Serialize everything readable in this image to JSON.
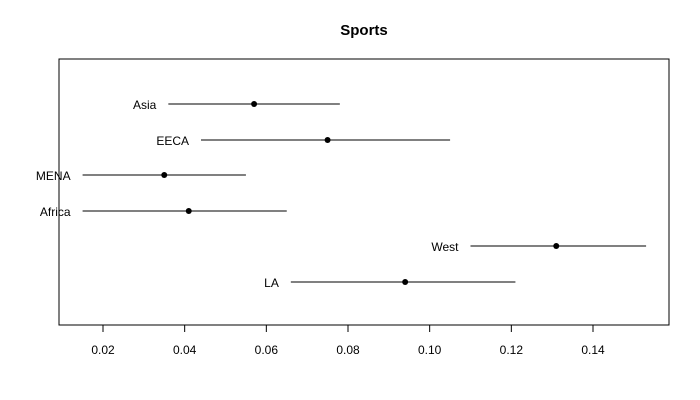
{
  "chart_data": {
    "type": "scatter",
    "title": "Sports",
    "xlabel": "",
    "ylabel": "",
    "xlim": [
      0.01,
      0.156
    ],
    "x_ticks": [
      0.02,
      0.04,
      0.06,
      0.08,
      0.1,
      0.12,
      0.14
    ],
    "x_tick_labels": [
      "0.02",
      "0.04",
      "0.06",
      "0.08",
      "0.10",
      "0.12",
      "0.14"
    ],
    "categories": [
      "Asia",
      "EECA",
      "MENA",
      "Africa",
      "West",
      "LA"
    ],
    "estimates": [
      0.057,
      0.075,
      0.035,
      0.041,
      0.131,
      0.094
    ],
    "lower": [
      0.036,
      0.044,
      0.015,
      0.015,
      0.11,
      0.066
    ],
    "upper": [
      0.078,
      0.105,
      0.055,
      0.065,
      0.153,
      0.121
    ],
    "grid": false,
    "error_bars": "horizontal interval lines",
    "point_color": "#000000",
    "line_color": "#000000"
  }
}
